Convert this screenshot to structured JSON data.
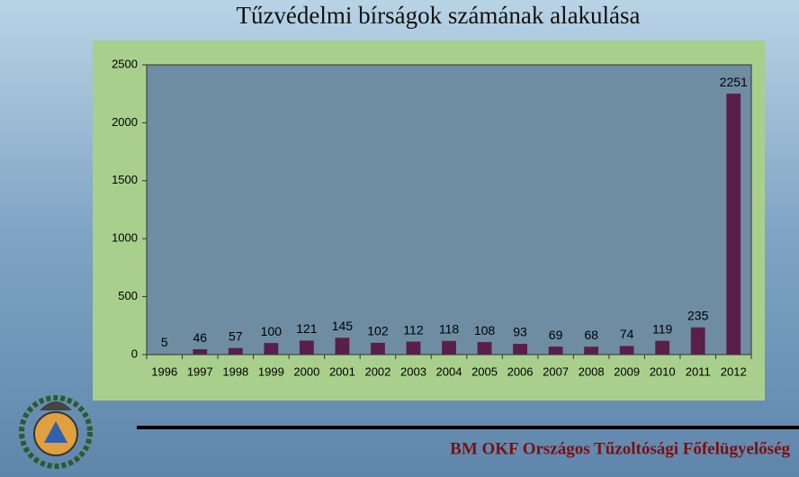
{
  "chart_data": {
    "type": "bar",
    "title": "Tűzvédelmi bírságok számának alakulása",
    "categories": [
      "1996",
      "1997",
      "1998",
      "1999",
      "2000",
      "2001",
      "2002",
      "2003",
      "2004",
      "2005",
      "2006",
      "2007",
      "2008",
      "2009",
      "2010",
      "2011",
      "2012"
    ],
    "values": [
      5,
      46,
      57,
      100,
      121,
      145,
      102,
      112,
      118,
      108,
      93,
      69,
      68,
      74,
      119,
      235,
      2251
    ],
    "color": "#5a1f48",
    "ylim": [
      0,
      2500
    ],
    "yticks": [
      0,
      500,
      1000,
      1500,
      2000,
      2500
    ],
    "grid": false
  },
  "footer": "BM OKF Országos Tűzoltósági Főfelügyelőség"
}
